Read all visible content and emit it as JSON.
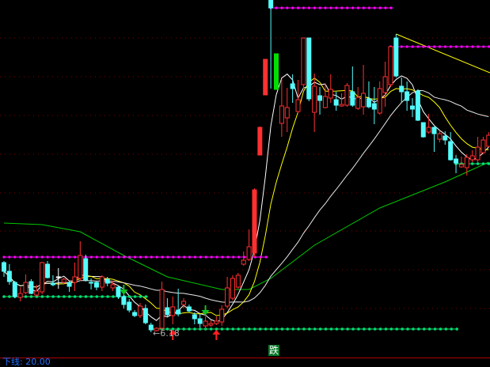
{
  "chart_data": {
    "type": "candlestick",
    "title": "",
    "colors": {
      "up": "#ff3030",
      "down": "#54fcfc",
      "special": "#00e000",
      "ma5": "#ffffff",
      "ma10": "#ffff00",
      "ma30": "#e8e8e8",
      "ma_long": "#00c800",
      "resistance": "#ff00ff",
      "support": "#00e070",
      "grid": "#800000"
    },
    "grid": true,
    "candles": [
      [
        7.06,
        7.08,
        6.88,
        6.95
      ],
      [
        6.95,
        7.04,
        6.78,
        6.82
      ],
      [
        6.81,
        6.83,
        6.61,
        6.63
      ],
      [
        6.62,
        6.75,
        6.57,
        6.67
      ],
      [
        6.68,
        6.91,
        6.66,
        6.81
      ],
      [
        6.82,
        6.85,
        6.66,
        6.67
      ],
      [
        6.65,
        6.78,
        6.63,
        6.7
      ],
      [
        6.69,
        7.07,
        6.66,
        7.06
      ],
      [
        7.04,
        7.08,
        6.86,
        6.87
      ],
      [
        6.8,
        6.9,
        6.76,
        6.78
      ],
      [
        6.88,
        6.99,
        6.73,
        6.88
      ],
      [
        6.81,
        6.87,
        6.78,
        6.85
      ],
      [
        6.81,
        6.83,
        6.69,
        6.76
      ],
      [
        6.81,
        7.06,
        6.7,
        6.88
      ],
      [
        6.86,
        7.33,
        6.83,
        7.15
      ],
      [
        7.11,
        7.16,
        6.82,
        6.84
      ],
      [
        6.81,
        6.86,
        6.72,
        6.8
      ],
      [
        6.81,
        6.82,
        6.71,
        6.75
      ],
      [
        6.75,
        6.9,
        6.7,
        6.88
      ],
      [
        6.85,
        6.88,
        6.76,
        6.8
      ],
      [
        6.74,
        6.83,
        6.7,
        6.78
      ],
      [
        6.75,
        6.76,
        6.6,
        6.63
      ],
      [
        6.63,
        6.66,
        6.48,
        6.53
      ],
      [
        6.56,
        6.6,
        6.43,
        6.46
      ],
      [
        6.43,
        6.46,
        6.37,
        6.39
      ],
      [
        6.39,
        6.55,
        6.36,
        6.51
      ],
      [
        6.48,
        6.53,
        6.28,
        6.3
      ],
      [
        6.27,
        6.3,
        6.18,
        6.21
      ],
      [
        6.2,
        6.24,
        6.19,
        6.23
      ],
      [
        6.23,
        6.82,
        6.2,
        6.72
      ],
      [
        6.49,
        6.61,
        6.38,
        6.4
      ],
      [
        6.39,
        6.63,
        6.28,
        6.5
      ],
      [
        6.46,
        6.73,
        6.38,
        6.41
      ],
      [
        6.53,
        6.61,
        6.48,
        6.57
      ],
      [
        6.5,
        6.53,
        6.43,
        6.45
      ],
      [
        6.4,
        6.43,
        6.28,
        6.35
      ],
      [
        6.35,
        6.41,
        6.24,
        6.29
      ],
      [
        6.26,
        6.38,
        6.2,
        6.32
      ],
      [
        6.27,
        6.33,
        6.25,
        6.29
      ],
      [
        6.29,
        6.38,
        6.27,
        6.32
      ],
      [
        6.31,
        6.52,
        6.26,
        6.47
      ],
      [
        6.51,
        6.88,
        6.48,
        6.74
      ],
      [
        6.61,
        6.9,
        6.58,
        6.86
      ],
      [
        6.75,
        6.93,
        6.73,
        6.9
      ],
      [
        7.04,
        7.2,
        7.02,
        7.09
      ],
      [
        7.1,
        7.48,
        7.08,
        7.26
      ],
      [
        7.18,
        8.0,
        7.13,
        7.98
      ],
      [
        8.42,
        8.78,
        8.42,
        8.77
      ],
      [
        9.18,
        9.63,
        9.18,
        9.63
      ],
      [
        10.38,
        10.38,
        9.26,
        10.28
      ],
      [
        9.7,
        9.7,
        9.25,
        9.25
      ],
      [
        8.82,
        9.38,
        8.65,
        9.04
      ],
      [
        8.89,
        9.27,
        8.71,
        9.02
      ],
      [
        9.32,
        9.44,
        9.08,
        9.26
      ],
      [
        8.97,
        9.37,
        8.95,
        9.12
      ],
      [
        9.31,
        9.9,
        9.26,
        9.9
      ],
      [
        9.9,
        9.9,
        9.1,
        9.13
      ],
      [
        8.96,
        9.45,
        8.71,
        9.29
      ],
      [
        9.17,
        9.28,
        8.93,
        9.11
      ],
      [
        9.02,
        9.32,
        9.01,
        9.16
      ],
      [
        9.14,
        9.44,
        9.08,
        9.25
      ],
      [
        9.12,
        9.22,
        8.98,
        9.05
      ],
      [
        9.04,
        9.2,
        9.03,
        9.06
      ],
      [
        9.05,
        9.33,
        9.03,
        9.3
      ],
      [
        9.22,
        9.54,
        9.03,
        9.05
      ],
      [
        9.01,
        9.28,
        8.99,
        9.15
      ],
      [
        9.03,
        9.56,
        8.93,
        9.2
      ],
      [
        9.13,
        9.35,
        9.01,
        9.03
      ],
      [
        9.07,
        9.28,
        8.81,
        9.0
      ],
      [
        8.95,
        9.35,
        8.93,
        9.26
      ],
      [
        9.21,
        9.6,
        9.03,
        9.41
      ],
      [
        9.31,
        9.8,
        9.28,
        9.79
      ],
      [
        9.9,
        9.95,
        9.4,
        9.42
      ],
      [
        9.29,
        9.4,
        9.08,
        9.22
      ],
      [
        9.22,
        9.35,
        8.98,
        9.11
      ],
      [
        9.04,
        9.14,
        8.9,
        9.0
      ],
      [
        9.23,
        9.25,
        8.85,
        8.86
      ],
      [
        8.83,
        8.83,
        8.64,
        8.65
      ],
      [
        8.71,
        8.94,
        8.69,
        8.77
      ],
      [
        8.77,
        8.78,
        8.46,
        8.69
      ],
      [
        8.62,
        8.73,
        8.58,
        8.69
      ],
      [
        8.66,
        8.72,
        8.55,
        8.61
      ],
      [
        8.59,
        8.71,
        8.35,
        8.36
      ],
      [
        8.37,
        8.42,
        8.19,
        8.32
      ],
      [
        8.27,
        8.4,
        8.26,
        8.3
      ],
      [
        8.26,
        8.43,
        8.16,
        8.39
      ],
      [
        8.36,
        8.48,
        8.33,
        8.41
      ],
      [
        8.36,
        8.65,
        8.33,
        8.52
      ],
      [
        8.45,
        8.65,
        8.43,
        8.61
      ],
      [
        8.53,
        8.71,
        8.52,
        8.67
      ]
    ],
    "solid_candles": [
      46,
      47,
      48
    ],
    "special_candles": [
      50
    ],
    "moving_averages": [
      {
        "period": 5,
        "color_key": "ma5"
      },
      {
        "period": 10,
        "color_key": "ma10"
      },
      {
        "period": 30,
        "color_key": "ma30"
      }
    ],
    "ma_long_samples": [
      [
        0,
        7.56
      ],
      [
        7,
        7.54
      ],
      [
        14,
        7.45
      ],
      [
        22,
        7.15
      ],
      [
        30,
        6.88
      ],
      [
        40,
        6.72
      ],
      [
        45,
        6.72
      ],
      [
        49,
        6.86
      ],
      [
        57,
        7.28
      ],
      [
        69,
        7.75
      ],
      [
        81,
        8.08
      ],
      [
        89,
        8.33
      ]
    ],
    "trendline": {
      "from": [
        72,
        9.95
      ],
      "to": [
        89,
        9.46
      ],
      "color_key": "ma10"
    },
    "resistance_levels": [
      {
        "value": 7.13,
        "from": 0,
        "to": 48
      },
      {
        "value": 10.28,
        "from": 49,
        "to": 71
      },
      {
        "value": 9.79,
        "from": 71,
        "to": 89
      }
    ],
    "support_levels": [
      {
        "value": 6.63,
        "from": 0,
        "to": 26
      },
      {
        "value": 6.22,
        "from": 27,
        "to": 83
      },
      {
        "value": 8.31,
        "from": 83,
        "to": 89
      }
    ],
    "signals": [
      {
        "type": "sell",
        "index": 22,
        "value": 6.66
      },
      {
        "type": "sell",
        "index": 37,
        "value": 6.4
      },
      {
        "type": "buy",
        "index": 31,
        "value": 6.22
      },
      {
        "type": "buy",
        "index": 39,
        "value": 6.22
      }
    ],
    "low_annotation": {
      "label": "←6.18",
      "value": 6.18
    },
    "signal_badge": "跌"
  },
  "footer": {
    "label": "下线: 20.00"
  }
}
